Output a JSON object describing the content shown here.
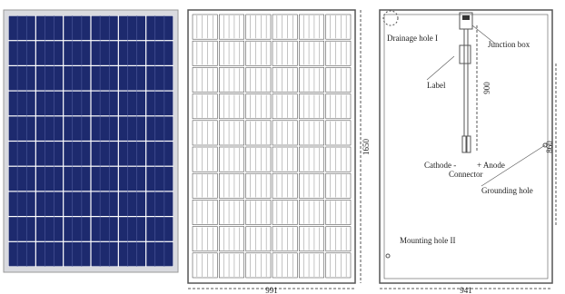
{
  "dimensions": {
    "height": "1650",
    "width_front": "991",
    "mounting_width": "941",
    "mounting_height": "860",
    "cable_length": "900"
  },
  "labels": {
    "drainage_hole": "Drainage hole I",
    "junction_box": "Junction box",
    "label": "Label",
    "cathode": "Cathode -",
    "anode": "+ Anode",
    "connector": "Connector",
    "grounding_hole": "Grounding hole",
    "mounting_hole": "Mounting hole II"
  }
}
